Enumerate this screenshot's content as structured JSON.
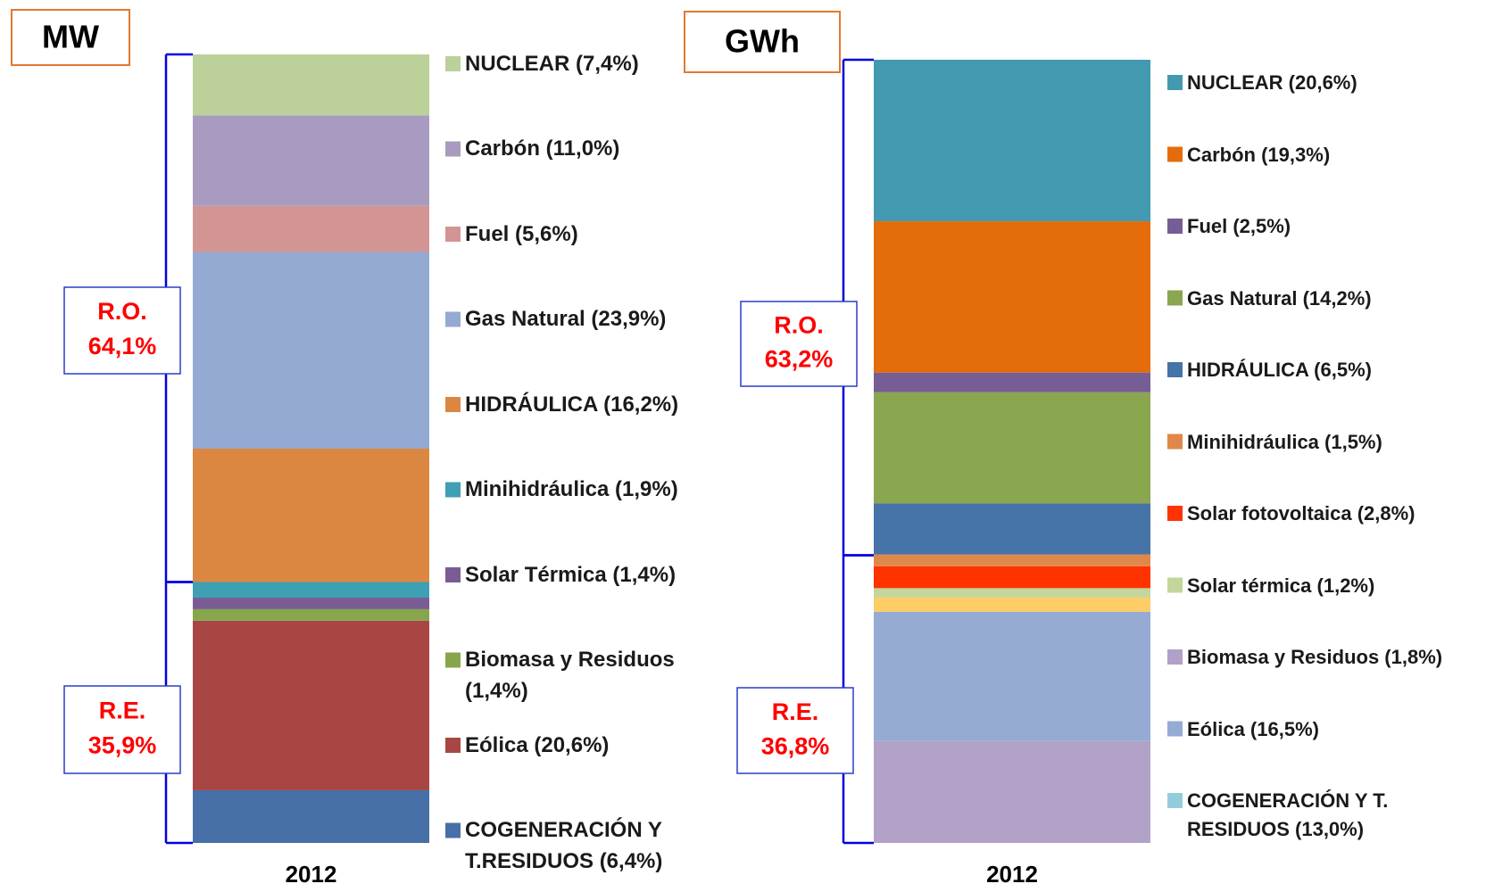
{
  "chart_data": [
    {
      "type": "bar",
      "stacked": true,
      "title": "MW",
      "categories": [
        "2012"
      ],
      "series": [
        {
          "name": "NUCLEAR (7,4%)",
          "color": "#bcd09a",
          "legend_color": "#bcd09a",
          "values": [
            7.4
          ]
        },
        {
          "name": "Carbón (11,0%)",
          "color": "#a89bbf",
          "legend_color": "#a89bbf",
          "values": [
            11.0
          ]
        },
        {
          "name": "Fuel (5,6%)",
          "color": "#d39594",
          "legend_color": "#d39594",
          "values": [
            5.6
          ]
        },
        {
          "name": "Gas Natural (23,9%)",
          "color": "#94aad2",
          "legend_color": "#94aad2",
          "values": [
            23.9
          ]
        },
        {
          "name": "HIDRÁULICA (16,2%)",
          "color": "#dc8741",
          "legend_color": "#dc8741",
          "values": [
            16.2
          ]
        },
        {
          "name": "Minihidráulica (1,9%)",
          "color": "#3f9fb3",
          "legend_color": "#3f9fb3",
          "values": [
            1.9
          ]
        },
        {
          "name": "Solar Térmica (1,4%)",
          "color": "#7a5c94",
          "legend_color": "#7a5c94",
          "values": [
            1.4
          ]
        },
        {
          "name": "Biomasa y Residuos (1,4%)",
          "color": "#87a64c",
          "legend_color": "#87a64c",
          "values": [
            1.4
          ]
        },
        {
          "name": "Eólica (20,6%)",
          "color": "#a84644",
          "legend_color": "#a84644",
          "values": [
            20.6
          ]
        },
        {
          "name": "COGENERACIÓN Y T.RESIDUOS (6,4%)",
          "color": "#4670a7",
          "legend_color": "#4670a7",
          "values": [
            6.4
          ]
        }
      ],
      "groups": [
        {
          "name": "R.O.",
          "value": 64.1,
          "value_label": "64,1%"
        },
        {
          "name": "R.E.",
          "value": 35.9,
          "value_label": "35,9%"
        }
      ]
    },
    {
      "type": "bar",
      "stacked": true,
      "title": "GWh",
      "categories": [
        "2012"
      ],
      "series": [
        {
          "name": "NUCLEAR (20,6%)",
          "color": "#4299b0",
          "legend_color": "#4299b0",
          "values": [
            20.6
          ]
        },
        {
          "name": "Carbón (19,3%)",
          "color": "#e46c0a",
          "legend_color": "#e46c0a",
          "values": [
            19.3
          ]
        },
        {
          "name": "Fuel (2,5%)",
          "color": "#775d95",
          "legend_color": "#775d95",
          "values": [
            2.5
          ]
        },
        {
          "name": "Gas Natural (14,2%)",
          "color": "#8aa64f",
          "legend_color": "#8aa64f",
          "values": [
            14.2
          ]
        },
        {
          "name": "HIDRÁULICA (6,5%)",
          "color": "#4673a8",
          "legend_color": "#4673a8",
          "values": [
            6.5
          ]
        },
        {
          "name": "Minihidráulica (1,5%)",
          "color": "#e0884a",
          "legend_color": "#e0884a",
          "values": [
            1.5
          ]
        },
        {
          "name": "Solar fotovoltaica (2,8%)",
          "color": "#ff3300",
          "legend_color": "#ff3300",
          "values": [
            2.8
          ]
        },
        {
          "name": "Solar térmica (1,2%)",
          "color": "#c3d69b",
          "legend_color": "#c3d69b",
          "values": [
            1.2
          ]
        },
        {
          "name": "Biomasa y Residuos (1,8%)",
          "color": "#ffcc66",
          "legend_color": "#b1a0c7",
          "values": [
            1.8
          ]
        },
        {
          "name": "Eólica (16,5%)",
          "color": "#95abd3",
          "legend_color": "#95abd3",
          "values": [
            16.5
          ]
        },
        {
          "name": "COGENERACIÓN Y T. RESIDUOS (13,0%)",
          "color": "#b3a2c8",
          "legend_color": "#93cddd",
          "values": [
            13.0
          ]
        }
      ],
      "groups": [
        {
          "name": "R.O.",
          "value": 63.2,
          "value_label": "63,2%"
        },
        {
          "name": "R.E.",
          "value": 36.8,
          "value_label": "36,8%"
        }
      ]
    }
  ]
}
